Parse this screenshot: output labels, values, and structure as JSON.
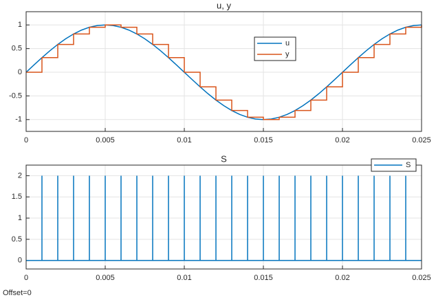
{
  "chart_data": [
    {
      "type": "line",
      "title": "u, y",
      "xlim": [
        0,
        0.025
      ],
      "xticks": [
        0,
        0.005,
        0.01,
        0.015,
        0.02,
        0.025
      ],
      "ylim": [
        -1.25,
        1.28
      ],
      "yticks": [
        -1,
        -0.5,
        0,
        0.5,
        1
      ],
      "grid": true,
      "series": [
        {
          "name": "u",
          "color": "#0072bd",
          "step": false,
          "x": [
            0,
            0.0005,
            0.001,
            0.0015,
            0.002,
            0.0025,
            0.003,
            0.0035,
            0.004,
            0.0045,
            0.005,
            0.0055,
            0.006,
            0.0065,
            0.007,
            0.0075,
            0.008,
            0.0085,
            0.009,
            0.0095,
            0.01,
            0.0105,
            0.011,
            0.0115,
            0.012,
            0.0125,
            0.013,
            0.0135,
            0.014,
            0.0145,
            0.015,
            0.0155,
            0.016,
            0.0165,
            0.017,
            0.0175,
            0.018,
            0.0185,
            0.019,
            0.0195,
            0.02,
            0.0205,
            0.021,
            0.0215,
            0.022,
            0.0225,
            0.023,
            0.0235,
            0.024,
            0.0245,
            0.025
          ],
          "values": [
            0,
            0.156,
            0.309,
            0.454,
            0.588,
            0.707,
            0.809,
            0.891,
            0.951,
            0.988,
            1,
            0.988,
            0.951,
            0.891,
            0.809,
            0.707,
            0.588,
            0.454,
            0.309,
            0.156,
            0,
            -0.156,
            -0.309,
            -0.454,
            -0.588,
            -0.707,
            -0.809,
            -0.891,
            -0.951,
            -0.988,
            -1,
            -0.988,
            -0.951,
            -0.891,
            -0.809,
            -0.707,
            -0.588,
            -0.454,
            -0.309,
            -0.156,
            0,
            0.156,
            0.309,
            0.454,
            0.588,
            0.707,
            0.809,
            0.891,
            0.951,
            0.988,
            1
          ]
        },
        {
          "name": "y",
          "color": "#d95319",
          "step": true,
          "x": [
            0,
            0.001,
            0.002,
            0.003,
            0.004,
            0.005,
            0.006,
            0.007,
            0.008,
            0.009,
            0.01,
            0.011,
            0.012,
            0.013,
            0.014,
            0.015,
            0.016,
            0.017,
            0.018,
            0.019,
            0.02,
            0.021,
            0.022,
            0.023,
            0.024,
            0.025
          ],
          "values": [
            0,
            0.309,
            0.588,
            0.809,
            0.951,
            1,
            0.951,
            0.809,
            0.588,
            0.309,
            0,
            -0.309,
            -0.588,
            -0.809,
            -0.951,
            -1,
            -0.951,
            -0.809,
            -0.588,
            -0.309,
            0,
            0.309,
            0.588,
            0.809,
            0.951,
            1
          ]
        }
      ]
    },
    {
      "type": "impulse",
      "title": "S",
      "xlim": [
        0,
        0.025
      ],
      "xticks": [
        0,
        0.005,
        0.01,
        0.015,
        0.02,
        0.025
      ],
      "ylim": [
        -0.2,
        2.25
      ],
      "yticks": [
        0,
        0.5,
        1,
        1.5,
        2
      ],
      "grid": true,
      "series": [
        {
          "name": "S",
          "color": "#0072bd",
          "x": [
            0.001,
            0.002,
            0.003,
            0.004,
            0.005,
            0.006,
            0.007,
            0.008,
            0.009,
            0.01,
            0.011,
            0.012,
            0.013,
            0.014,
            0.015,
            0.016,
            0.017,
            0.018,
            0.019,
            0.02,
            0.021,
            0.022,
            0.023,
            0.024
          ],
          "values": [
            2,
            2,
            2,
            2,
            2,
            2,
            2,
            2,
            2,
            2,
            2,
            2,
            2,
            2,
            2,
            2,
            2,
            2,
            2,
            2,
            2,
            2,
            2,
            2
          ]
        }
      ]
    }
  ],
  "footer": "Offset=0"
}
